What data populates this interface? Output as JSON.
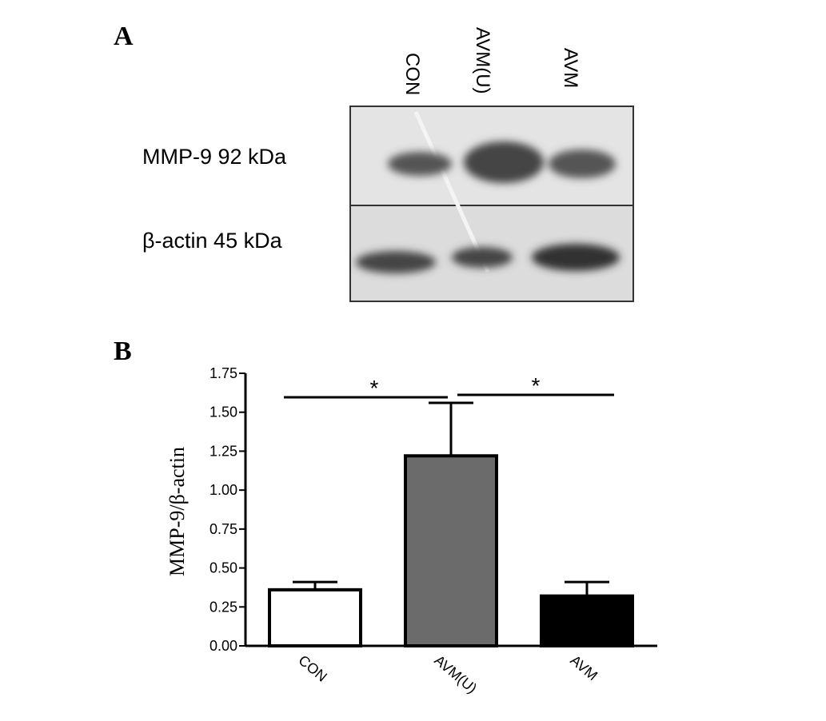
{
  "panel_a": {
    "label": "A",
    "lanes": [
      "CON",
      "AVM(U)",
      "AVM"
    ],
    "bands": [
      "MMP-9 92 kDa",
      "β-actin 45 kDa"
    ]
  },
  "chart_data": {
    "type": "bar",
    "panel_label": "B",
    "y_label": "MMP-9/β-actin",
    "categories": [
      "CON",
      "AVM(U)",
      "AVM"
    ],
    "values": [
      0.36,
      1.22,
      0.32
    ],
    "errors": [
      0.05,
      0.34,
      0.09
    ],
    "colors": [
      "#ffffff",
      "#6b6b6b",
      "#000000"
    ],
    "ylim": [
      0,
      1.75
    ],
    "yticks": [
      {
        "value": 0,
        "label": "0.00"
      },
      {
        "value": 0.25,
        "label": "0.25"
      },
      {
        "value": 0.5,
        "label": "0.50"
      },
      {
        "value": 0.75,
        "label": "0.75"
      },
      {
        "value": 1,
        "label": "1.00"
      },
      {
        "value": 1.25,
        "label": "1.25"
      },
      {
        "value": 1.5,
        "label": "1.50"
      },
      {
        "value": 1.75,
        "label": "1.75"
      }
    ],
    "annotations": [
      "*",
      "*"
    ]
  }
}
